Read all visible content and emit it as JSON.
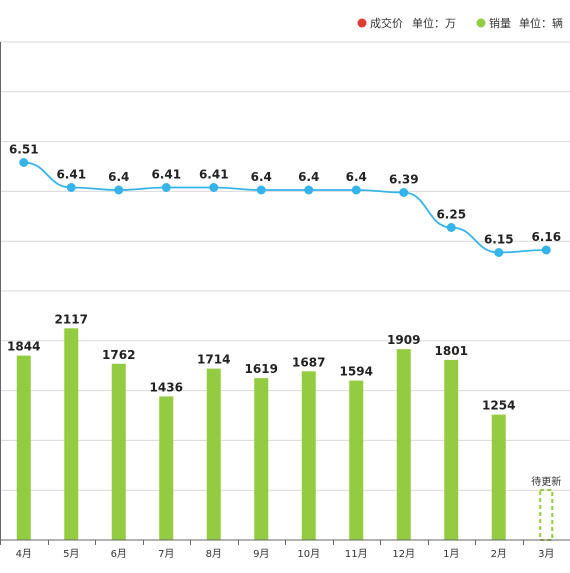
{
  "legend": {
    "price_label": "成交价",
    "price_unit": "单位：万",
    "sales_label": "销量",
    "sales_unit": "单位：辆"
  },
  "colors": {
    "price": "#35b4ec",
    "price_legend": "#e03b2f",
    "sales": "#94cc41",
    "grid": "#d9d9d9"
  },
  "pending_label": "待更新",
  "chart_data": {
    "type": "bar+line",
    "categories": [
      "4月",
      "5月",
      "6月",
      "7月",
      "8月",
      "9月",
      "10月",
      "11月",
      "12月",
      "1月",
      "2月",
      "3月"
    ],
    "series": [
      {
        "name": "成交价",
        "type": "line",
        "unit": "万",
        "values": [
          6.51,
          6.41,
          6.4,
          6.41,
          6.41,
          6.4,
          6.4,
          6.4,
          6.39,
          6.25,
          6.15,
          6.16
        ],
        "value_labels": [
          "6.51",
          "6.41",
          "6.4",
          "6.41",
          "6.41",
          "6.4",
          "6.4",
          "6.4",
          "6.39",
          "6.25",
          "6.15",
          "6.16"
        ]
      },
      {
        "name": "销量",
        "type": "bar",
        "unit": "辆",
        "values": [
          1844,
          2117,
          1762,
          1436,
          1714,
          1619,
          1687,
          1594,
          1909,
          1801,
          1254,
          null
        ],
        "value_labels": [
          "1844",
          "2117",
          "1762",
          "1436",
          "1714",
          "1619",
          "1687",
          "1594",
          "1909",
          "1801",
          "1254",
          ""
        ]
      }
    ],
    "legend_position": "top-right",
    "grid": true
  }
}
